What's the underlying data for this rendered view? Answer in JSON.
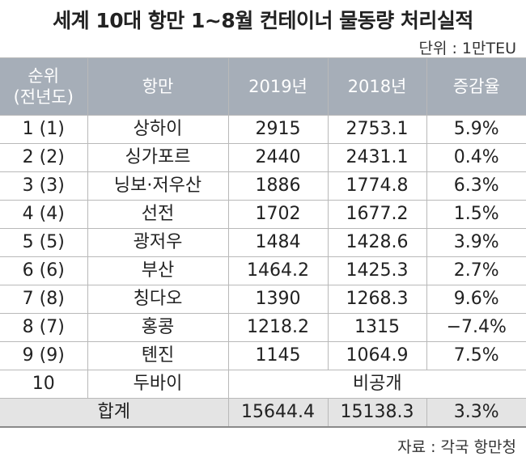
{
  "title": "세계 10대 항만 1~8월 컨테이너 물동량 처리실적",
  "unit": "단위 : 1만TEU",
  "source": "자료 : 각국 항만청",
  "headers": {
    "rank_line1": "순위",
    "rank_line2": "(전년도)",
    "port": "항만",
    "y2019": "2019년",
    "y2018": "2018년",
    "change": "증감율"
  },
  "rows": [
    {
      "rank": "1 (1)",
      "port": "상하이",
      "y2019": "2915",
      "y2018": "2753.1",
      "change": "5.9%"
    },
    {
      "rank": "2 (2)",
      "port": "싱가포르",
      "y2019": "2440",
      "y2018": "2431.1",
      "change": "0.4%"
    },
    {
      "rank": "3 (3)",
      "port": "닝보·저우산",
      "y2019": "1886",
      "y2018": "1774.8",
      "change": "6.3%"
    },
    {
      "rank": "4 (4)",
      "port": "선전",
      "y2019": "1702",
      "y2018": "1677.2",
      "change": "1.5%"
    },
    {
      "rank": "5 (5)",
      "port": "광저우",
      "y2019": "1484",
      "y2018": "1428.6",
      "change": "3.9%"
    },
    {
      "rank": "6 (6)",
      "port": "부산",
      "y2019": "1464.2",
      "y2018": "1425.3",
      "change": "2.7%"
    },
    {
      "rank": "7 (8)",
      "port": "칭다오",
      "y2019": "1390",
      "y2018": "1268.3",
      "change": "9.6%"
    },
    {
      "rank": "8 (7)",
      "port": "홍콩",
      "y2019": "1218.2",
      "y2018": "1315",
      "change": "−7.4%"
    },
    {
      "rank": "9 (9)",
      "port": "톈진",
      "y2019": "1145",
      "y2018": "1064.9",
      "change": "7.5%"
    }
  ],
  "dubai_row": {
    "rank": "10",
    "port": "두바이",
    "value": "비공개"
  },
  "total_row": {
    "label": "합계",
    "y2019": "15644.4",
    "y2018": "15138.3",
    "change": "3.3%"
  }
}
